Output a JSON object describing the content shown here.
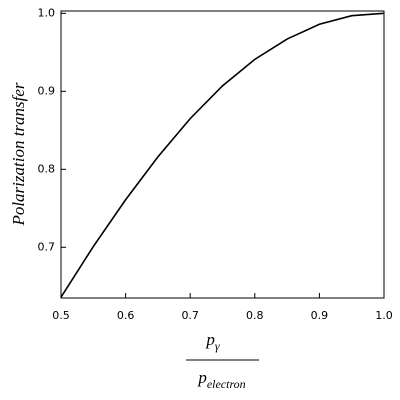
{
  "chart_data": {
    "type": "line",
    "ylabel": "Polarization transfer",
    "xlabel": {
      "numerator": "p",
      "numerator_sub": "γ",
      "denominator": "p",
      "denominator_sub": "electron"
    },
    "x": [
      0.5,
      0.55,
      0.6,
      0.65,
      0.7,
      0.75,
      0.8,
      0.85,
      0.9,
      0.95,
      1.0
    ],
    "series": [
      {
        "color": "#000000",
        "values": [
          0.636,
          0.701,
          0.761,
          0.816,
          0.865,
          0.907,
          0.941,
          0.967,
          0.986,
          0.997,
          1.0
        ]
      }
    ],
    "xlim": [
      0.5,
      1.0
    ],
    "ylim": [
      0.635,
      1.003
    ],
    "xticks": [
      0.5,
      0.6,
      0.7,
      0.8,
      0.9,
      {
        "value": 1,
        "label": "1.0"
      }
    ],
    "yticks": [
      0.7,
      0.8,
      0.9,
      {
        "value": 1,
        "label": "1.0"
      }
    ]
  }
}
